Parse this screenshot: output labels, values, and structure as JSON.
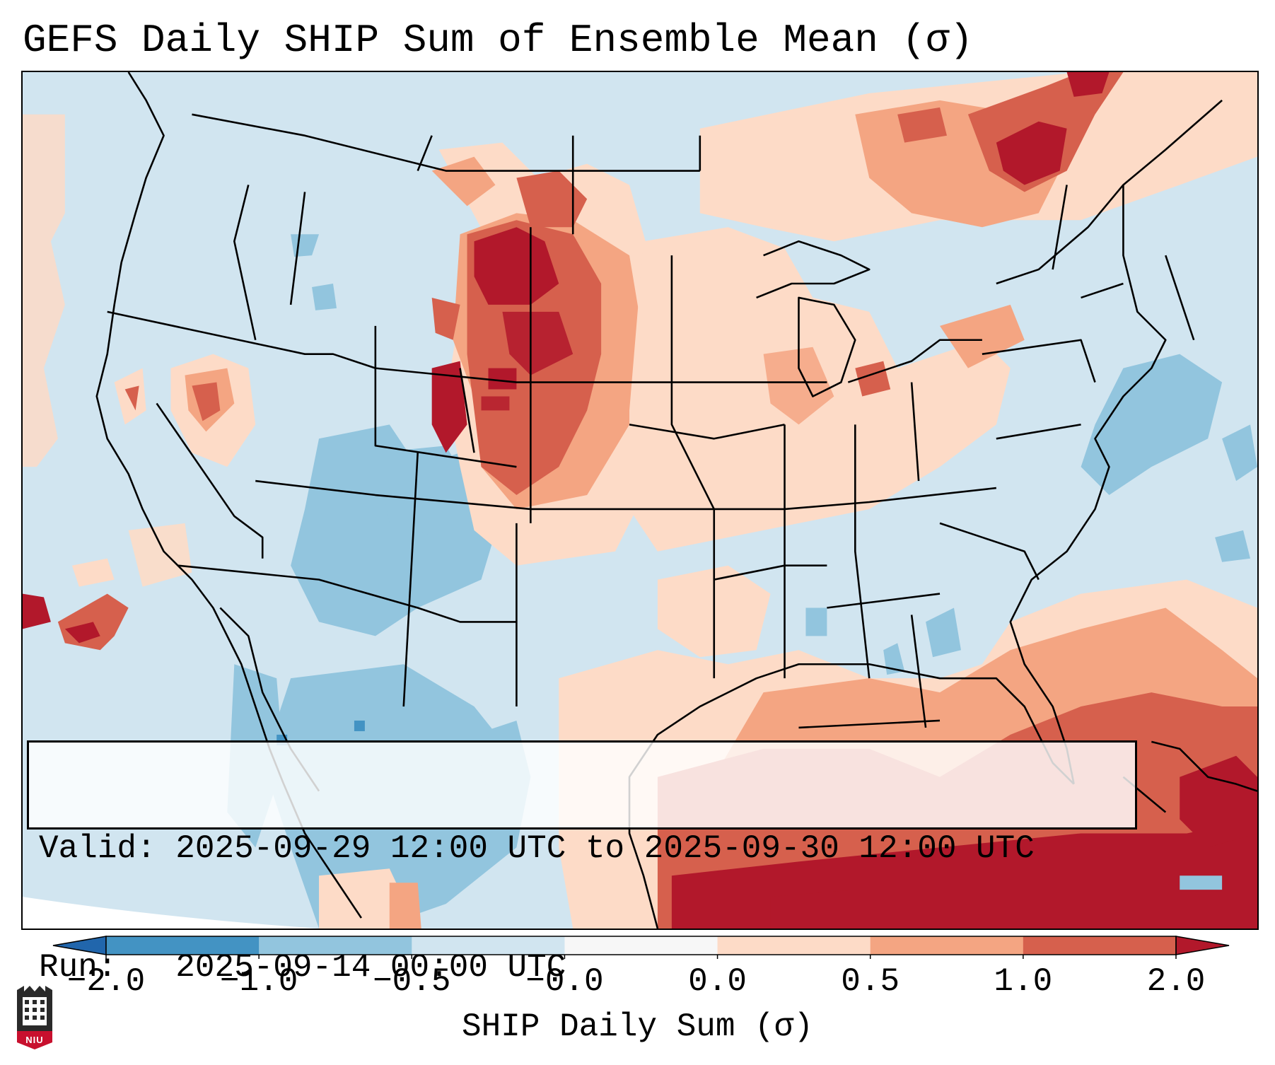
{
  "title": "GEFS Daily SHIP Sum of Ensemble Mean (σ)",
  "info": {
    "valid_label": "Valid:",
    "valid_value": "2025-09-29 12:00 UTC to 2025-09-30 12:00 UTC",
    "run_label": "Run:",
    "run_value": "2025-09-14 00:00 UTC"
  },
  "colorbar": {
    "label": "SHIP Daily Sum (σ)",
    "ticks": [
      "−2.0",
      "−1.0",
      "−0.5",
      "−0.0",
      "0.0",
      "0.5",
      "1.0",
      "2.0"
    ],
    "bins": [
      {
        "range": "< -2.0",
        "color": "#2166ac"
      },
      {
        "range": "-2.0 to -1.0",
        "color": "#4393c3"
      },
      {
        "range": "-1.0 to -0.5",
        "color": "#92c5de"
      },
      {
        "range": "-0.5 to -0.0",
        "color": "#d1e5f0"
      },
      {
        "range": "-0.0 to 0.0",
        "color": "#f7f7f7"
      },
      {
        "range": "0.0 to 0.5",
        "color": "#fddbc7"
      },
      {
        "range": "0.5 to 1.0",
        "color": "#f4a582"
      },
      {
        "range": "1.0 to 2.0",
        "color": "#d6604d"
      },
      {
        "range": "> 2.0",
        "color": "#b2182b"
      }
    ]
  },
  "map_regions": [
    {
      "name": "northern-plains",
      "category": "1.0 to 2.0"
    },
    {
      "name": "dakotas-core",
      "category": "> 2.0"
    },
    {
      "name": "nebraska-kansas",
      "category": "1.0 to 2.0"
    },
    {
      "name": "eastern-colorado-front-range",
      "category": "> 2.0"
    },
    {
      "name": "midwest",
      "category": "0.0 to 0.5"
    },
    {
      "name": "oklahoma-texas-panhandle",
      "category": "0.0 to 0.5"
    },
    {
      "name": "southwest-desert",
      "category": "-1.0 to -0.5"
    },
    {
      "name": "mexico-northwest",
      "category": "-1.0 to -0.5"
    },
    {
      "name": "gulf-of-mexico",
      "category": "1.0 to 2.0"
    },
    {
      "name": "caribbean",
      "category": "> 2.0"
    },
    {
      "name": "quebec-ontario-north",
      "category": "> 2.0"
    },
    {
      "name": "western-atlantic",
      "category": "0.5 to 1.0"
    },
    {
      "name": "northeast-atlantic-coast",
      "category": "-1.0 to -0.5"
    },
    {
      "name": "pacific-offshore",
      "category": "1.0 to 2.0"
    },
    {
      "name": "great-basin",
      "category": "1.0 to 2.0"
    }
  ],
  "logo": {
    "text": "NIU"
  }
}
